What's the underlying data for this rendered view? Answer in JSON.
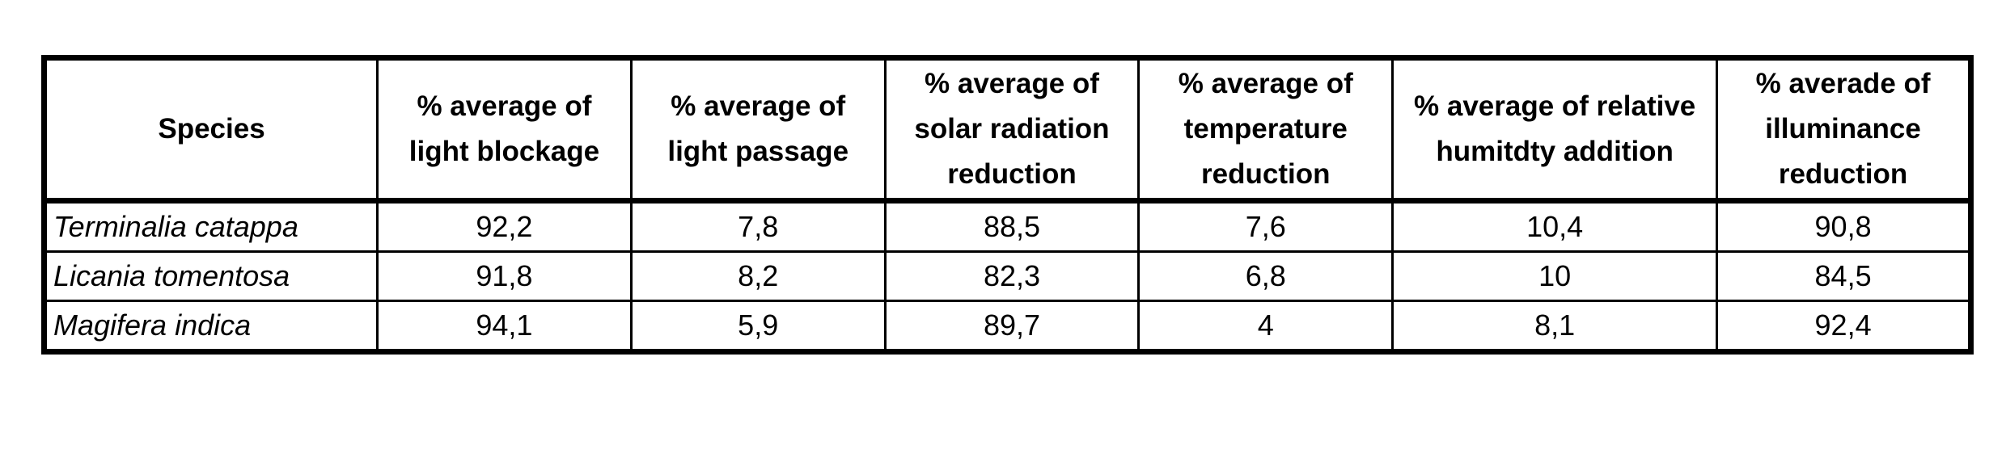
{
  "table": {
    "headers": [
      "Species",
      "% average of light blockage",
      "% average of light passage",
      "% average of solar radiation reduction",
      "% average of temperature reduction",
      "% average of relative humitdty addition",
      "% averade of illuminance reduction"
    ],
    "rows": [
      [
        "Terminalia catappa",
        "92,2",
        "7,8",
        "88,5",
        "7,6",
        "10,4",
        "90,8"
      ],
      [
        "Licania tomentosa",
        "91,8",
        "8,2",
        "82,3",
        "6,8",
        "10",
        "84,5"
      ],
      [
        "Magifera indica",
        "94,1",
        "5,9",
        "89,7",
        "4",
        "8,1",
        "92,4"
      ]
    ]
  }
}
